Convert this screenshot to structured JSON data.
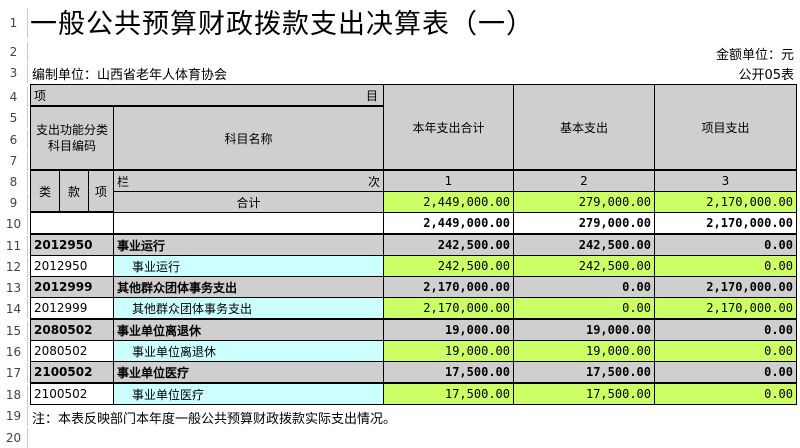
{
  "sheet": {
    "title": "一般公共预算财政拨款支出决算表（一）",
    "unit_label": "金额单位：元",
    "org_label": "编制单位：山西省老年人体育协会",
    "table_no": "公开05表",
    "note": "注：本表反映部门本年度一般公共预算财政拨款实际支出情况。"
  },
  "row_numbers": [
    "1",
    "2",
    "3",
    "4",
    "5",
    "6",
    "7",
    "8",
    "9",
    "10",
    "11",
    "12",
    "13",
    "14",
    "15",
    "16",
    "17",
    "18",
    "19",
    "20"
  ],
  "header": {
    "xiang": "项",
    "mu": "目",
    "func_code": "支出功能分类科目编码",
    "subject_name": "科目名称",
    "total_col": "本年支出合计",
    "basic_col": "基本支出",
    "project_col": "项目支出",
    "lei": "类",
    "kuan": "款",
    "xiang2": "项",
    "lan": "栏",
    "ci": "次",
    "col1": "1",
    "col2": "2",
    "col3": "3",
    "sum_label": "合计"
  },
  "totals": [
    {
      "total": "2,449,000.00",
      "basic": "279,000.00",
      "project": "2,170,000.00"
    },
    {
      "total": "2,449,000.00",
      "basic": "279,000.00",
      "project": "2,170,000.00"
    }
  ],
  "rows": [
    {
      "code": "2012950",
      "name": "事业运行",
      "total": "242,500.00",
      "basic": "242,500.00",
      "project": "0.00",
      "group": true
    },
    {
      "code": "2012950",
      "name": "事业运行",
      "total": "242,500.00",
      "basic": "242,500.00",
      "project": "0.00",
      "group": false
    },
    {
      "code": "2012999",
      "name": "其他群众团体事务支出",
      "total": "2,170,000.00",
      "basic": "0.00",
      "project": "2,170,000.00",
      "group": true
    },
    {
      "code": "2012999",
      "name": "其他群众团体事务支出",
      "total": "2,170,000.00",
      "basic": "0.00",
      "project": "2,170,000.00",
      "group": false
    },
    {
      "code": "2080502",
      "name": "事业单位离退休",
      "total": "19,000.00",
      "basic": "19,000.00",
      "project": "0.00",
      "group": true
    },
    {
      "code": "2080502",
      "name": "事业单位离退休",
      "total": "19,000.00",
      "basic": "19,000.00",
      "project": "0.00",
      "group": false
    },
    {
      "code": "2100502",
      "name": "事业单位医疗",
      "total": "17,500.00",
      "basic": "17,500.00",
      "project": "0.00",
      "group": true
    },
    {
      "code": "2100502",
      "name": "事业单位医疗",
      "total": "17,500.00",
      "basic": "17,500.00",
      "project": "0.00",
      "group": false
    }
  ]
}
